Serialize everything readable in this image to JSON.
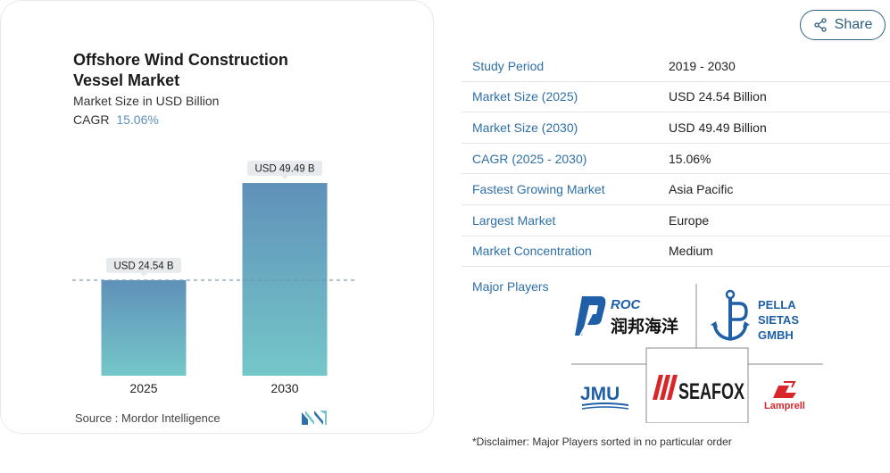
{
  "chart_data": {
    "type": "bar",
    "title": "Offshore Wind Construction Vessel Market",
    "subtitle": "Market Size in USD Billion",
    "cagr_label": "CAGR",
    "cagr_value": "15.06%",
    "categories": [
      "2025",
      "2030"
    ],
    "values": [
      24.54,
      49.49
    ],
    "data_labels": [
      "USD 24.54 B",
      "USD 49.49 B"
    ],
    "ylim": [
      0,
      55
    ],
    "bar_colors": {
      "top": "#5f91b9",
      "bottom": "#75c7c9"
    },
    "reference_line_color": "#6d93b3",
    "grid": false
  },
  "source": {
    "label": "Source :",
    "value": "Mordor Intelligence"
  },
  "share": {
    "label": "Share"
  },
  "stats": [
    {
      "key": "Study Period",
      "value": "2019 - 2030"
    },
    {
      "key": "Market Size (2025)",
      "value": "USD 24.54 Billion"
    },
    {
      "key": "Market Size (2030)",
      "value": "USD 49.49 Billion"
    },
    {
      "key": "CAGR (2025 - 2030)",
      "value": "15.06%"
    },
    {
      "key": "Fastest Growing Market",
      "value": "Asia Pacific"
    },
    {
      "key": "Largest Market",
      "value": "Europe"
    },
    {
      "key": "Market Concentration",
      "value": "Medium"
    }
  ],
  "players": {
    "label": "Major Players",
    "logos": {
      "roc_en": "ROC",
      "roc_cn": "润邦海洋",
      "pella_1": "PELLA",
      "pella_2": "SIETAS",
      "pella_3": "GMBH",
      "jmu": "JMU",
      "seafox": "SEAFOX",
      "lamprell": "Lamprell"
    }
  },
  "disclaimer": "*Disclaimer: Major Players sorted in no particular order",
  "colors": {
    "accent": "#2f70a8",
    "share_border": "#2e5f7d",
    "cagr": "#5d8fb8"
  }
}
